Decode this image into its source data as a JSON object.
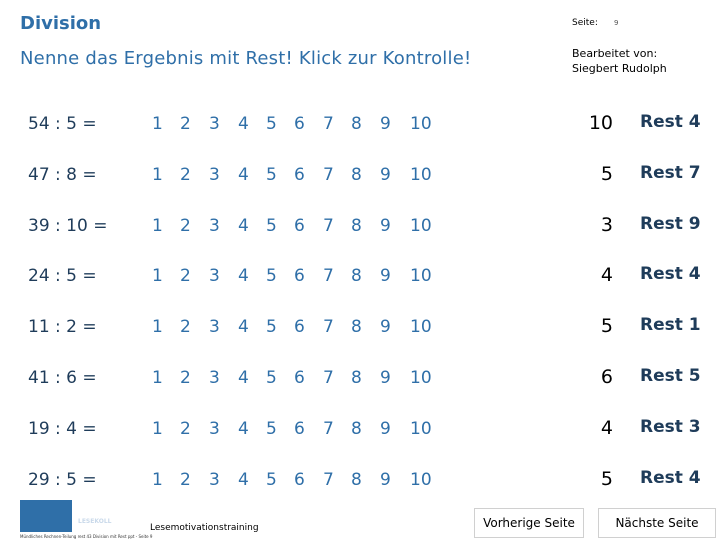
{
  "header": {
    "title": "Division",
    "page_label": "Seite:",
    "page_number": "9",
    "subtitle": "Nenne das Ergebnis mit Rest! Klick zur Kontrolle!",
    "author_line1": "Bearbeitet von:",
    "author_line2": "Siegbert Rudolph"
  },
  "options": [
    "1",
    "2",
    "3",
    "4",
    "5",
    "6",
    "7",
    "8",
    "9",
    "10"
  ],
  "tasks": [
    {
      "problem": "54 : 5 =",
      "answer": "10",
      "rest": "Rest 4"
    },
    {
      "problem": "47 : 8 =",
      "answer": "5",
      "rest": "Rest 7"
    },
    {
      "problem": "39 : 10 =",
      "answer": "3",
      "rest": "Rest 9"
    },
    {
      "problem": "24 : 5 =",
      "answer": "4",
      "rest": "Rest 4"
    },
    {
      "problem": "11 : 2 =",
      "answer": "5",
      "rest": "Rest 1"
    },
    {
      "problem": "41 : 6 =",
      "answer": "6",
      "rest": "Rest 5"
    },
    {
      "problem": "19 : 4 =",
      "answer": "4",
      "rest": "Rest 3"
    },
    {
      "problem": "29 : 5 =",
      "answer": "5",
      "rest": "Rest 4"
    }
  ],
  "footer": {
    "logo_text": "LESEKOLL",
    "training_text": "Lesemotivationstraining",
    "small_text": "Mündliches Rechnen-Teilung rest 43 Division mit Rest ppt - Seite 9",
    "prev_button": "Vorherige Seite",
    "next_button": "Nächste Seite"
  },
  "colors": {
    "accent": "#2f6fa8",
    "task_text": "#1f3c5a"
  }
}
